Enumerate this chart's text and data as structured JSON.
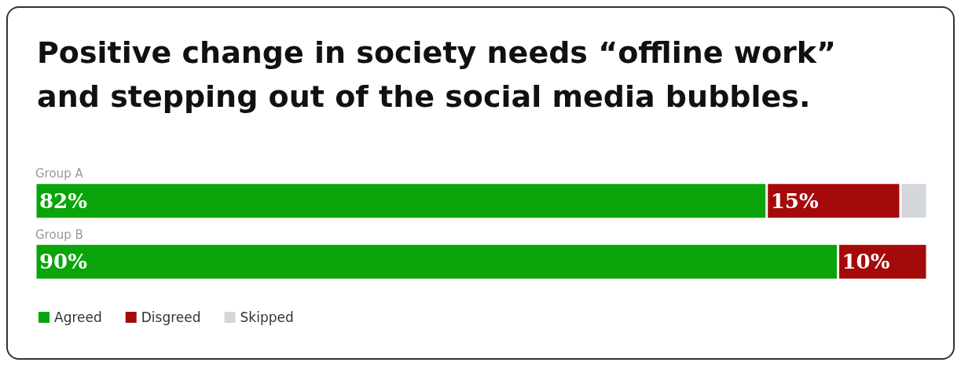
{
  "chart_data": {
    "type": "bar",
    "orientation": "horizontal",
    "stacked": true,
    "title": "Positive change in society needs “offline work” and stepping out of the social media bubbles.",
    "categories": [
      "Group A",
      "Group B"
    ],
    "xlim": [
      0,
      100
    ],
    "legend": "bottom left",
    "series": [
      {
        "name": "Agreed",
        "color": "#0aa50a",
        "values": [
          82,
          90
        ],
        "value_labels": [
          "82%",
          "90%"
        ]
      },
      {
        "name": "Disgreed",
        "color": "#a50a0a",
        "values": [
          15,
          10
        ],
        "value_labels": [
          "15%",
          "10%"
        ]
      },
      {
        "name": "Skipped",
        "color": "#d3d6db",
        "values": [
          3,
          0
        ],
        "value_labels": [
          null,
          null
        ]
      }
    ]
  }
}
